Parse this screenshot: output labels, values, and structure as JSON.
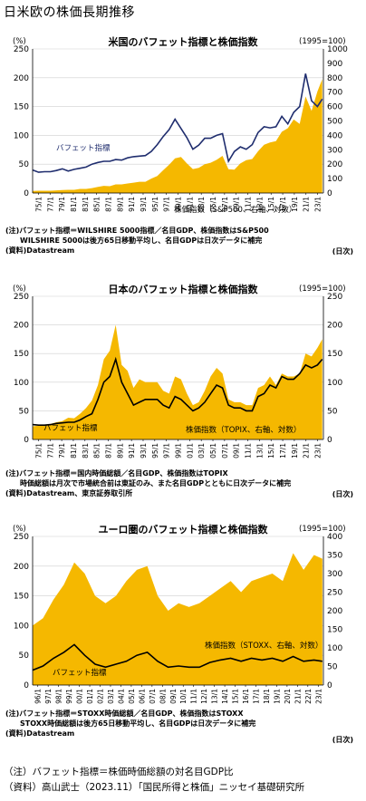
{
  "page_title": "日米欧の株価長期推移",
  "footer": {
    "note": "（注）バフェット指標＝株価時価総額の対名目GDP比",
    "source": "（資料）高山武士（2023.11）「国民所得と株価」ニッセイ基礎研究所"
  },
  "chart_data": [
    {
      "type": "area",
      "title": "米国のバフェット指標と株価指数",
      "left_unit": "(%)",
      "right_unit": "(1995=100)",
      "ylim_left": [
        0,
        250
      ],
      "ylim_right": [
        0,
        1000
      ],
      "yticks_left": [
        "0",
        "50",
        "100",
        "150",
        "200",
        "250"
      ],
      "yticks_right": [
        "0",
        "100",
        "200",
        "300",
        "400",
        "500",
        "600",
        "700",
        "800",
        "900",
        "1000"
      ],
      "x_labels": [
        "75/1",
        "77/1",
        "79/1",
        "81/1",
        "83/1",
        "85/1",
        "87/1",
        "89/1",
        "91/1",
        "93/1",
        "95/1",
        "97/1",
        "99/1",
        "01/1",
        "03/1",
        "05/1",
        "07/1",
        "09/1",
        "11/1",
        "13/1",
        "15/1",
        "17/1",
        "19/1",
        "21/1",
        "23/1"
      ],
      "x_range": [
        1975,
        2024
      ],
      "series": [
        {
          "name": "株価指数（S&P500、右軸、対数）",
          "axis": "right",
          "color": "#F5B800",
          "x": [
            1975,
            1976,
            1977,
            1978,
            1979,
            1980,
            1981,
            1982,
            1983,
            1984,
            1985,
            1986,
            1987,
            1988,
            1989,
            1990,
            1991,
            1992,
            1993,
            1994,
            1995,
            1996,
            1997,
            1998,
            1999,
            2000,
            2001,
            2002,
            2003,
            2004,
            2005,
            2006,
            2007,
            2008,
            2009,
            2010,
            2011,
            2012,
            2013,
            2014,
            2015,
            2016,
            2017,
            2018,
            2019,
            2020,
            2021,
            2022,
            2023,
            2023.8
          ],
          "values": [
            14,
            16,
            16,
            16,
            18,
            20,
            22,
            22,
            28,
            28,
            34,
            42,
            50,
            47,
            60,
            60,
            66,
            72,
            78,
            78,
            100,
            118,
            158,
            196,
            240,
            250,
            205,
            166,
            174,
            200,
            210,
            230,
            258,
            165,
            162,
            205,
            228,
            236,
            290,
            335,
            350,
            360,
            425,
            450,
            510,
            480,
            670,
            570,
            705,
            790
          ]
        },
        {
          "name": "バフェット指標",
          "axis": "left",
          "color": "#1F2D6E",
          "x": [
            1975,
            1976,
            1977,
            1978,
            1979,
            1980,
            1981,
            1982,
            1983,
            1984,
            1985,
            1986,
            1987,
            1988,
            1989,
            1990,
            1991,
            1992,
            1993,
            1994,
            1995,
            1996,
            1997,
            1998,
            1999,
            2000,
            2001,
            2002,
            2003,
            2004,
            2005,
            2006,
            2007,
            2008,
            2009,
            2010,
            2011,
            2012,
            2013,
            2014,
            2015,
            2016,
            2017,
            2018,
            2019,
            2020,
            2021,
            2022,
            2023,
            2023.8
          ],
          "values": [
            40,
            36,
            37,
            37,
            39,
            42,
            38,
            41,
            43,
            45,
            50,
            53,
            55,
            55,
            58,
            57,
            61,
            63,
            64,
            65,
            72,
            84,
            98,
            110,
            128,
            112,
            96,
            76,
            83,
            95,
            95,
            100,
            103,
            55,
            72,
            80,
            76,
            84,
            105,
            115,
            113,
            115,
            133,
            120,
            140,
            150,
            207,
            160,
            150,
            163
          ]
        }
      ]
    },
    {
      "type": "area",
      "title": "日本のバフェット指標と株価指数",
      "left_unit": "(%)",
      "right_unit": "(1995=100)",
      "ylim_left": [
        0,
        250
      ],
      "ylim_right": [
        0,
        250
      ],
      "yticks_left": [
        "0",
        "50",
        "100",
        "150",
        "200",
        "250"
      ],
      "yticks_right": [
        "0",
        "50",
        "100",
        "150",
        "200",
        "250"
      ],
      "x_labels": [
        "75/1",
        "77/1",
        "79/1",
        "81/1",
        "83/1",
        "85/1",
        "87/1",
        "89/1",
        "91/1",
        "93/1",
        "95/1",
        "97/1",
        "99/1",
        "01/1",
        "03/1",
        "05/1",
        "07/1",
        "09/1",
        "11/1",
        "13/1",
        "15/1",
        "17/1",
        "19/1",
        "21/1",
        "23/1"
      ],
      "x_range": [
        1975,
        2024
      ],
      "series": [
        {
          "name": "株価指数（TOPIX、右軸、対数）",
          "axis": "right",
          "color": "#F5B800",
          "x": [
            1975,
            1976,
            1977,
            1978,
            1979,
            1980,
            1981,
            1982,
            1983,
            1984,
            1985,
            1986,
            1987,
            1988,
            1989,
            1990,
            1991,
            1992,
            1993,
            1994,
            1995,
            1996,
            1997,
            1998,
            1999,
            2000,
            2001,
            2002,
            2003,
            2004,
            2005,
            2006,
            2007,
            2008,
            2009,
            2010,
            2011,
            2012,
            2013,
            2014,
            2015,
            2016,
            2017,
            2018,
            2019,
            2020,
            2021,
            2022,
            2023,
            2023.8
          ],
          "values": [
            23,
            24,
            26,
            27,
            30,
            32,
            38,
            37,
            45,
            55,
            68,
            95,
            140,
            155,
            200,
            130,
            120,
            90,
            105,
            100,
            100,
            100,
            85,
            80,
            110,
            105,
            80,
            60,
            65,
            85,
            110,
            125,
            115,
            70,
            65,
            65,
            60,
            60,
            90,
            95,
            110,
            95,
            115,
            110,
            110,
            115,
            150,
            145,
            160,
            175
          ]
        },
        {
          "name": "バフェット指標",
          "axis": "left",
          "color": "#000000",
          "x": [
            1975,
            1976,
            1977,
            1978,
            1979,
            1980,
            1981,
            1982,
            1983,
            1984,
            1985,
            1986,
            1987,
            1988,
            1989,
            1990,
            1991,
            1992,
            1993,
            1994,
            1995,
            1996,
            1997,
            1998,
            1999,
            2000,
            2001,
            2002,
            2003,
            2004,
            2005,
            2006,
            2007,
            2008,
            2009,
            2010,
            2011,
            2012,
            2013,
            2014,
            2015,
            2016,
            2017,
            2018,
            2019,
            2020,
            2021,
            2022,
            2023,
            2023.8
          ],
          "values": [
            26,
            25,
            25,
            26,
            28,
            29,
            30,
            30,
            34,
            40,
            45,
            70,
            100,
            110,
            140,
            100,
            80,
            60,
            65,
            70,
            70,
            70,
            60,
            55,
            75,
            70,
            60,
            50,
            55,
            65,
            80,
            95,
            90,
            60,
            55,
            55,
            50,
            50,
            75,
            80,
            95,
            90,
            110,
            105,
            105,
            115,
            130,
            125,
            130,
            140
          ]
        }
      ]
    },
    {
      "type": "area",
      "title": "ユーロ圏のバフェット指標と株価指数",
      "left_unit": "(%)",
      "right_unit": "(1995=100)",
      "ylim_left": [
        0,
        250
      ],
      "ylim_right": [
        0,
        400
      ],
      "yticks_left": [
        "0",
        "50",
        "100",
        "150",
        "200",
        "250"
      ],
      "yticks_right": [
        "0",
        "50",
        "100",
        "150",
        "200",
        "250",
        "300",
        "350",
        "400"
      ],
      "x_labels": [
        "96/1",
        "97/1",
        "98/1",
        "99/1",
        "00/1",
        "01/1",
        "02/1",
        "03/1",
        "04/1",
        "05/1",
        "06/1",
        "07/1",
        "08/1",
        "09/1",
        "10/1",
        "11/1",
        "12/1",
        "13/1",
        "14/1",
        "15/1",
        "16/1",
        "17/1",
        "18/1",
        "19/1",
        "20/1",
        "21/1",
        "22/1",
        "23/1"
      ],
      "x_range": [
        1996,
        2023.9
      ],
      "series": [
        {
          "name": "株価指数（STOXX、右軸、対数）",
          "axis": "right",
          "color": "#F5B800",
          "x": [
            1996,
            1997,
            1998,
            1999,
            2000,
            2001,
            2002,
            2003,
            2004,
            2005,
            2006,
            2007,
            2008,
            2009,
            2010,
            2011,
            2012,
            2013,
            2014,
            2015,
            2016,
            2017,
            2018,
            2019,
            2020,
            2021,
            2022,
            2023,
            2023.8
          ],
          "values": [
            160,
            180,
            230,
            270,
            330,
            300,
            240,
            220,
            240,
            280,
            310,
            320,
            240,
            200,
            220,
            210,
            220,
            240,
            260,
            280,
            250,
            280,
            290,
            300,
            280,
            355,
            310,
            350,
            340
          ]
        },
        {
          "name": "バフェット指標",
          "axis": "left",
          "color": "#000000",
          "x": [
            1996,
            1997,
            1998,
            1999,
            2000,
            2001,
            2002,
            2003,
            2004,
            2005,
            2006,
            2007,
            2008,
            2009,
            2010,
            2011,
            2012,
            2013,
            2014,
            2015,
            2016,
            2017,
            2018,
            2019,
            2020,
            2021,
            2022,
            2023,
            2023.8
          ],
          "values": [
            25,
            32,
            45,
            55,
            68,
            50,
            35,
            30,
            35,
            40,
            50,
            55,
            40,
            30,
            32,
            30,
            30,
            38,
            42,
            45,
            40,
            45,
            42,
            45,
            40,
            48,
            40,
            42,
            40
          ]
        }
      ]
    }
  ],
  "panels": [
    {
      "series_label_index": "バフェット指標",
      "series_label_stock": "株価指数（S&P500、右軸、対数）",
      "notes": [
        "(注)バフェット指標＝WILSHIRE 5000指標／名目GDP、株価指数はS&P500",
        "　　WILSHIRE 5000は後方65日移動平均し、名目GDPは日次データに補完",
        "(資料)Datastream"
      ],
      "nichiji": "(日次)"
    },
    {
      "series_label_index": "バフェット指標",
      "series_label_stock": "株価指数（TOPIX、右軸、対数）",
      "notes": [
        "(注)バフェット指標＝国内時価総額／名目GDP、株価指数はTOPIX",
        "　　時価総額は月次で市場統合前は東証のみ、また名目GDPとともに日次データに補完",
        "(資料)Datastream、東京証券取引所"
      ],
      "nichiji": "(日次)"
    },
    {
      "series_label_index": "バフェット指標",
      "series_label_stock": "株価指数（STOXX、右軸、対数）",
      "notes": [
        "(注)バフェット指標＝STOXX時価総額／名目GDP、株価指数はSTOXX",
        "　　STOXX時価総額は後方65日移動平均し、名目GDPは日次データに補完",
        "(資料)Datastream"
      ],
      "nichiji": "(日次)"
    }
  ]
}
